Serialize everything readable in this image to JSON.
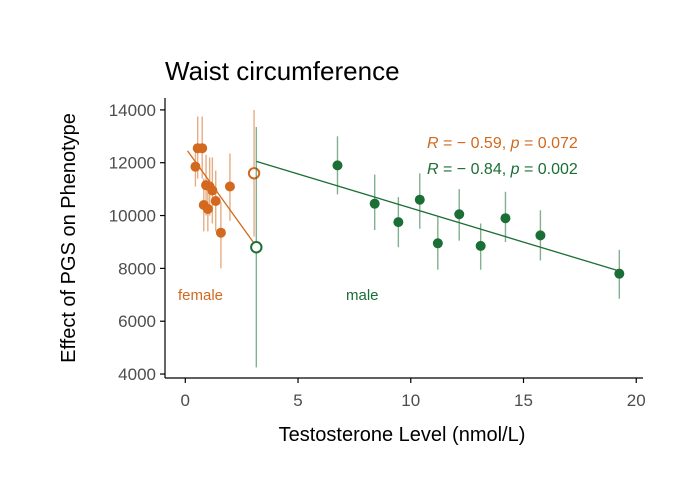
{
  "colors": {
    "female": "#D2691E",
    "male": "#1B6E35",
    "axis": "#000000"
  },
  "chart_data": {
    "type": "scatter",
    "title": "Waist circumference",
    "xlabel": "Testosterone Level (nmol/L)",
    "ylabel": "Effect of PGS on Phenotype",
    "xlim": [
      -0.9,
      20.3
    ],
    "ylim": [
      3850,
      14450
    ],
    "x_ticks": [
      0,
      5,
      10,
      15,
      20
    ],
    "x_tick_labels": [
      "0",
      "5",
      "10",
      "15",
      "20"
    ],
    "y_ticks": [
      4000,
      6000,
      8000,
      10000,
      12000,
      14000
    ],
    "y_tick_labels": [
      "4000",
      "6000",
      "8000",
      "10000",
      "12000",
      "14000"
    ],
    "grid": false,
    "series": [
      {
        "name": "female",
        "color": "#D2691E",
        "points": [
          {
            "x": 0.45,
            "y": 11850,
            "lo": 11100,
            "hi": 12650
          },
          {
            "x": 0.55,
            "y": 12550,
            "lo": 11400,
            "hi": 13750
          },
          {
            "x": 0.75,
            "y": 12550,
            "lo": 11400,
            "hi": 13750
          },
          {
            "x": 0.82,
            "y": 10400,
            "lo": 9400,
            "hi": 11400
          },
          {
            "x": 0.92,
            "y": 11150,
            "lo": 10000,
            "hi": 12300
          },
          {
            "x": 1.0,
            "y": 10250,
            "lo": 9400,
            "hi": 11000
          },
          {
            "x": 1.08,
            "y": 11100,
            "lo": 10000,
            "hi": 12200
          },
          {
            "x": 1.2,
            "y": 10950,
            "lo": 9700,
            "hi": 12200
          },
          {
            "x": 1.35,
            "y": 10550,
            "lo": 9400,
            "hi": 11700
          },
          {
            "x": 1.58,
            "y": 9350,
            "lo": 8000,
            "hi": 10500
          },
          {
            "x": 1.98,
            "y": 11100,
            "lo": 9800,
            "hi": 12350
          },
          {
            "x": 3.05,
            "y": 11600,
            "lo": 9200,
            "hi": 14000,
            "hollow": true
          }
        ],
        "fit": {
          "x": [
            0.1,
            3.05
          ],
          "y": [
            12450,
            8950
          ]
        }
      },
      {
        "name": "male",
        "color": "#1B6E35",
        "points": [
          {
            "x": 3.15,
            "y": 8800,
            "lo": 4250,
            "hi": 13350,
            "hollow": true
          },
          {
            "x": 6.75,
            "y": 11900,
            "lo": 10800,
            "hi": 13000
          },
          {
            "x": 8.4,
            "y": 10450,
            "lo": 9450,
            "hi": 11550
          },
          {
            "x": 9.45,
            "y": 9750,
            "lo": 8800,
            "hi": 10700
          },
          {
            "x": 10.4,
            "y": 10600,
            "lo": 9500,
            "hi": 11600
          },
          {
            "x": 11.2,
            "y": 8950,
            "lo": 7950,
            "hi": 9950
          },
          {
            "x": 12.15,
            "y": 10050,
            "lo": 9050,
            "hi": 11000
          },
          {
            "x": 13.1,
            "y": 8850,
            "lo": 7950,
            "hi": 9700
          },
          {
            "x": 14.2,
            "y": 9900,
            "lo": 9000,
            "hi": 10900
          },
          {
            "x": 15.75,
            "y": 9250,
            "lo": 8300,
            "hi": 10200
          },
          {
            "x": 19.25,
            "y": 7800,
            "lo": 6850,
            "hi": 8700
          }
        ],
        "fit": {
          "x": [
            3.15,
            19.25
          ],
          "y": [
            12050,
            7900
          ]
        }
      }
    ],
    "annotations": {
      "female_stat": {
        "r": "R = − 0.59, ",
        "p": "p = 0.072"
      },
      "male_stat": {
        "r": "R = − 0.84, ",
        "p": "p = 0.002"
      },
      "female_label": "female",
      "male_label": "male"
    }
  }
}
